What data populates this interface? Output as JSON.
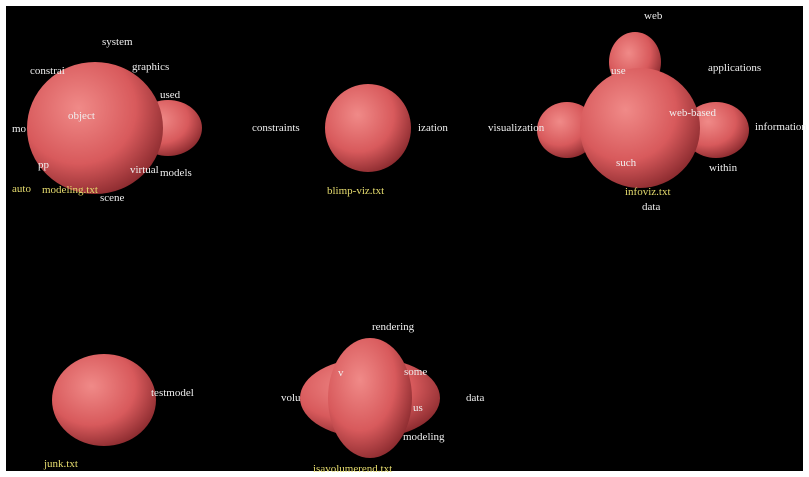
{
  "groups": [
    {
      "file": "modeling.txt",
      "words": [
        "system",
        "constrai",
        "graphics",
        "used",
        "object",
        "mo",
        "pp",
        "virtual",
        "models",
        "auto",
        "scene"
      ]
    },
    {
      "file": "blimp-viz.txt",
      "words": [
        "constraints",
        "ization"
      ]
    },
    {
      "file": "infoviz.txt",
      "words": [
        "web",
        "use",
        "applications",
        "visualization",
        "web-based",
        "information",
        "such",
        "within",
        "data"
      ]
    },
    {
      "file": "junk.txt",
      "words": [
        "testmodel"
      ]
    },
    {
      "file": "isavolumerend.txt",
      "words": [
        "rendering",
        "v",
        "some",
        "volu",
        "data",
        "us",
        "modeling"
      ]
    }
  ]
}
